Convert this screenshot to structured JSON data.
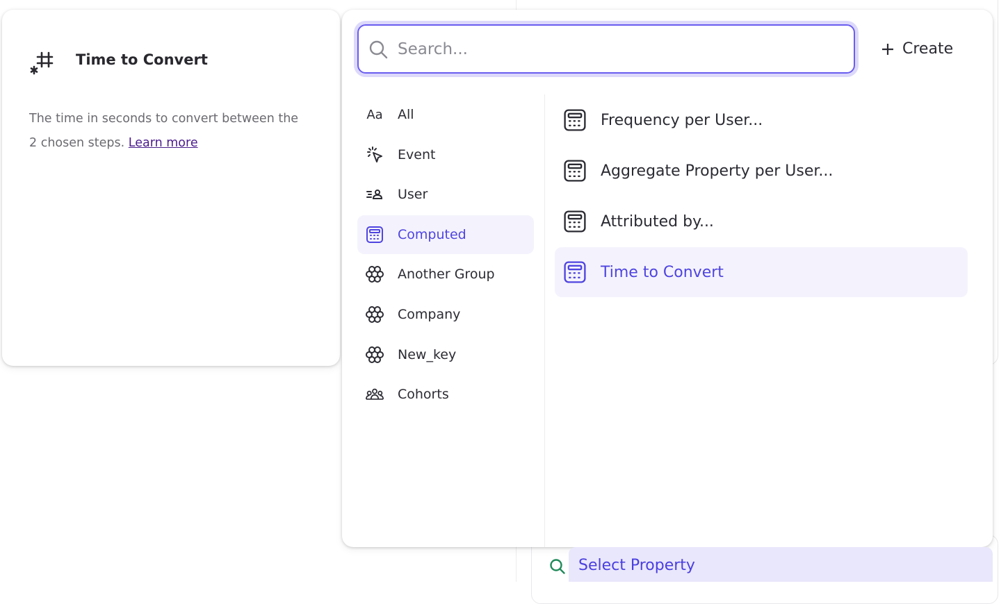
{
  "info_card": {
    "icon": "computed-number-icon",
    "title": "Time to Convert",
    "description": "The time in seconds to convert between the 2 chosen steps.",
    "learn_more": "Learn more"
  },
  "dropdown": {
    "search": {
      "placeholder": "Search...",
      "value": ""
    },
    "create_label": "Create",
    "categories": [
      {
        "label": "All",
        "icon": "text-aa-icon"
      },
      {
        "label": "Event",
        "icon": "cursor-click-icon"
      },
      {
        "label": "User",
        "icon": "user-list-icon"
      },
      {
        "label": "Computed",
        "icon": "calculator-icon",
        "selected": true
      },
      {
        "label": "Another Group",
        "icon": "group-flower-icon"
      },
      {
        "label": "Company",
        "icon": "group-flower-icon"
      },
      {
        "label": "New_key",
        "icon": "group-flower-icon"
      },
      {
        "label": "Cohorts",
        "icon": "people-icon"
      }
    ],
    "results": [
      {
        "label": "Frequency per User..."
      },
      {
        "label": "Aggregate Property per User..."
      },
      {
        "label": "Attributed by..."
      },
      {
        "label": "Time to Convert",
        "selected": true
      }
    ]
  },
  "select_property": {
    "label": "Select Property"
  },
  "colors": {
    "accent": "#4f44e0",
    "selected_bg": "#f4f3fd",
    "link": "#4b1c8c",
    "search_icon_green": "#1f8a5a"
  }
}
